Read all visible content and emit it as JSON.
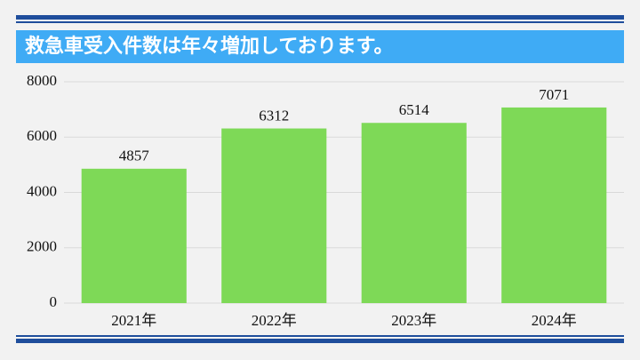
{
  "chart_data": {
    "type": "bar",
    "title": "救急車受入件数は年々増加しております。",
    "categories": [
      "2021年",
      "2022年",
      "2023年",
      "2024年"
    ],
    "values": [
      4857,
      6312,
      6514,
      7071
    ],
    "color": "#7ed957",
    "ylim": [
      0,
      8000
    ],
    "yticks": [
      0,
      2000,
      4000,
      6000,
      8000
    ],
    "grid": true
  }
}
